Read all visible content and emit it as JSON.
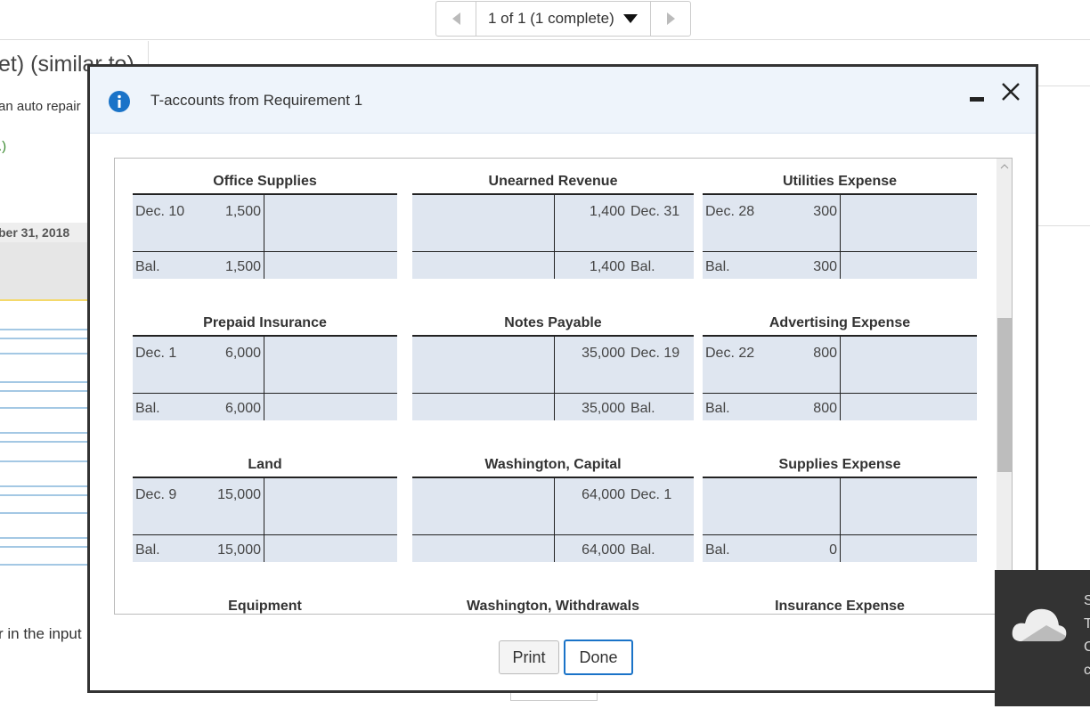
{
  "nav": {
    "label": "1 of 1 (1 complete)"
  },
  "background": {
    "title_fragment": "et) (similar to)",
    "text1": "an auto repair",
    "text2": ".)",
    "date": "ber 31, 2018",
    "footer": "r in the input"
  },
  "dialog": {
    "title": "T-accounts from Requirement 1",
    "accounts": [
      {
        "title": "Office Supplies",
        "entries": [
          {
            "side": "debit",
            "date": "Dec. 10",
            "amount": "1,500"
          }
        ],
        "balance": {
          "side": "debit",
          "label": "Bal.",
          "amount": "1,500"
        }
      },
      {
        "title": "Unearned Revenue",
        "entries": [
          {
            "side": "credit",
            "date": "Dec. 31",
            "amount": "1,400"
          }
        ],
        "balance": {
          "side": "credit",
          "label": "Bal.",
          "amount": "1,400"
        }
      },
      {
        "title": "Utilities Expense",
        "entries": [
          {
            "side": "debit",
            "date": "Dec. 28",
            "amount": "300"
          }
        ],
        "balance": {
          "side": "debit",
          "label": "Bal.",
          "amount": "300"
        }
      },
      {
        "title": "Prepaid Insurance",
        "entries": [
          {
            "side": "debit",
            "date": "Dec. 1",
            "amount": "6,000"
          }
        ],
        "balance": {
          "side": "debit",
          "label": "Bal.",
          "amount": "6,000"
        }
      },
      {
        "title": "Notes Payable",
        "entries": [
          {
            "side": "credit",
            "date": "Dec. 19",
            "amount": "35,000"
          }
        ],
        "balance": {
          "side": "credit",
          "label": "Bal.",
          "amount": "35,000"
        }
      },
      {
        "title": "Advertising Expense",
        "entries": [
          {
            "side": "debit",
            "date": "Dec. 22",
            "amount": "800"
          }
        ],
        "balance": {
          "side": "debit",
          "label": "Bal.",
          "amount": "800"
        }
      },
      {
        "title": "Land",
        "entries": [
          {
            "side": "debit",
            "date": "Dec. 9",
            "amount": "15,000"
          }
        ],
        "balance": {
          "side": "debit",
          "label": "Bal.",
          "amount": "15,000"
        }
      },
      {
        "title": "Washington, Capital",
        "entries": [
          {
            "side": "credit",
            "date": "Dec. 1",
            "amount": "64,000"
          }
        ],
        "balance": {
          "side": "credit",
          "label": "Bal.",
          "amount": "64,000"
        }
      },
      {
        "title": "Supplies Expense",
        "entries": [],
        "balance": {
          "side": "debit",
          "label": "Bal.",
          "amount": "0"
        }
      },
      {
        "title": "Equipment"
      },
      {
        "title": "Washington, Withdrawals"
      },
      {
        "title": "Insurance Expense"
      }
    ],
    "buttons": {
      "print": "Print",
      "done": "Done"
    }
  },
  "toast": {
    "lines": [
      "S",
      "T",
      "C",
      "c"
    ]
  }
}
